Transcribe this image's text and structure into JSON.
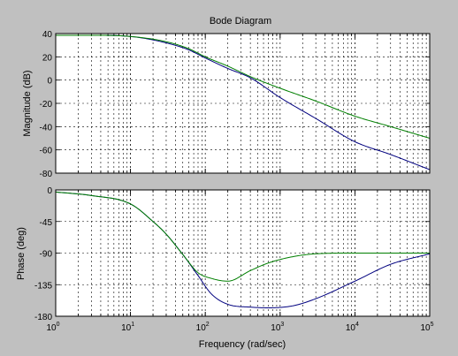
{
  "chart_data": [
    {
      "type": "line",
      "panel": "magnitude",
      "title": "Bode Diagram",
      "ylabel": "Magnitude (dB)",
      "xscale": "log",
      "xlim": [
        1,
        100000
      ],
      "ylim": [
        -80,
        40
      ],
      "yticks": [
        40,
        20,
        0,
        -20,
        -40,
        -60,
        -80
      ],
      "grid": true,
      "x": [
        1,
        3,
        10,
        30,
        60,
        100,
        200,
        400,
        1000,
        3000,
        10000,
        30000,
        100000
      ],
      "series": [
        {
          "color": "#00007f",
          "values": [
            38.5,
            38.5,
            37.5,
            32,
            26,
            19,
            10,
            2,
            -15,
            -33,
            -53,
            -64,
            -77
          ]
        },
        {
          "color": "#007f00",
          "values": [
            38.5,
            38.5,
            37.5,
            33,
            27,
            20,
            12,
            3,
            -7,
            -18,
            -31,
            -40,
            -50
          ]
        }
      ]
    },
    {
      "type": "line",
      "panel": "phase",
      "xlabel": "Frequency  (rad/sec)",
      "ylabel": "Phase (deg)",
      "xscale": "log",
      "xlim": [
        1,
        100000
      ],
      "ylim": [
        -180,
        0
      ],
      "yticks": [
        0,
        -45,
        -90,
        -135,
        -180
      ],
      "xtick_labels": [
        {
          "base": "10",
          "exp": "0"
        },
        {
          "base": "10",
          "exp": "1"
        },
        {
          "base": "10",
          "exp": "2"
        },
        {
          "base": "10",
          "exp": "3"
        },
        {
          "base": "10",
          "exp": "4"
        },
        {
          "base": "10",
          "exp": "5"
        }
      ],
      "grid": true,
      "x": [
        1,
        3,
        10,
        20,
        30,
        50,
        80,
        120,
        200,
        400,
        700,
        1500,
        3000,
        10000,
        30000,
        100000
      ],
      "series": [
        {
          "color": "#00007f",
          "values": [
            -3,
            -8,
            -20,
            -45,
            -63,
            -92,
            -122,
            -148,
            -163,
            -167,
            -168,
            -165,
            -155,
            -130,
            -106,
            -91
          ]
        },
        {
          "color": "#007f00",
          "values": [
            -3,
            -8,
            -20,
            -45,
            -63,
            -92,
            -118,
            -126,
            -130,
            -115,
            -104,
            -95,
            -91,
            -90,
            -90,
            -90
          ]
        }
      ]
    }
  ]
}
